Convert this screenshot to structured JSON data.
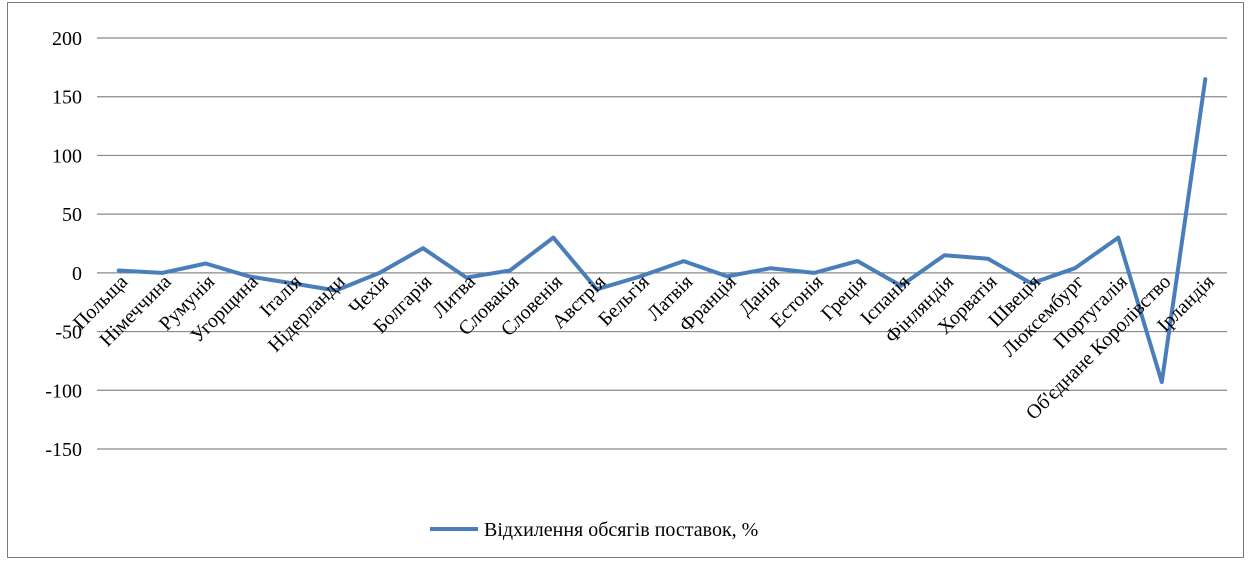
{
  "chart_data": {
    "type": "line",
    "categories": [
      "Польща",
      "Німеччина",
      "Румунія",
      "Угорщина",
      "Італія",
      "Нідерланди",
      "Чехія",
      "Болгарія",
      "Литва",
      "Словакія",
      "Словенія",
      "Австрія",
      "Бельгія",
      "Латвія",
      "Франція",
      "Данія",
      "Естонія",
      "Греція",
      "Іспанія",
      "Фінляндія",
      "Хорватія",
      "Швеція",
      "Люксембург",
      "Португалія",
      "Об'єднане Королівство",
      "Ірландія"
    ],
    "series": [
      {
        "name": "Відхилення обсягів поставок, %",
        "color": "#4a7ebb",
        "values": [
          2,
          0,
          8,
          -3,
          -9,
          -15,
          0,
          21,
          -4,
          2,
          30,
          -14,
          -3,
          10,
          -3,
          4,
          0,
          10,
          -11,
          15,
          12,
          -9,
          4,
          30,
          -93,
          165
        ]
      }
    ],
    "y_ticks": [
      "200",
      "150",
      "100",
      "50",
      "0",
      "-50",
      "-100",
      "-150"
    ],
    "ylim": [
      -150,
      200
    ],
    "y_step": 50,
    "grid": true,
    "legend_position": "bottom"
  }
}
